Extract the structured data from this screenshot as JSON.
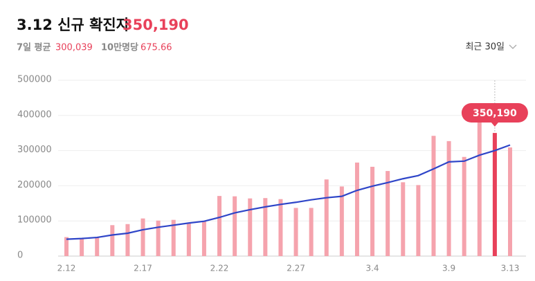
{
  "header": {
    "title": "3.12 신규 확진자",
    "value": "350,190",
    "avg_label": "7일 평균",
    "avg_value": "300,039",
    "per_label": "10만명당",
    "per_value": "675.66",
    "range": "최근 30일"
  },
  "chart_data": {
    "type": "bar",
    "categories": [
      "2.12",
      null,
      null,
      null,
      null,
      "2.17",
      null,
      null,
      null,
      null,
      "2.22",
      null,
      null,
      null,
      null,
      "2.27",
      null,
      null,
      null,
      null,
      "3.4",
      null,
      null,
      null,
      null,
      "3.9",
      null,
      null,
      null,
      "3.13"
    ],
    "series": [
      {
        "type": "bar",
        "color": "#f5a3ad",
        "highlight_color": "#e8415a",
        "values": [
          54000,
          51000,
          54000,
          88000,
          91000,
          107000,
          101000,
          103000,
          95000,
          99000,
          171000,
          170000,
          164000,
          165000,
          162000,
          137000,
          137000,
          218000,
          198000,
          266000,
          254000,
          242000,
          210000,
          202000,
          342000,
          327000,
          282000,
          383000,
          350190,
          309000
        ],
        "value_labels": [
          null,
          null,
          null,
          null,
          null,
          null,
          null,
          null,
          null,
          null,
          null,
          null,
          null,
          null,
          null,
          null,
          null,
          null,
          null,
          null,
          null,
          null,
          null,
          null,
          null,
          null,
          null,
          null,
          "350,190",
          null
        ]
      },
      {
        "type": "line",
        "color": "#2e45c8",
        "values": [
          48000,
          50000,
          53000,
          60000,
          65000,
          75000,
          82000,
          88000,
          94000,
          99000,
          110000,
          123000,
          132000,
          140000,
          147000,
          153000,
          160000,
          166000,
          170000,
          187000,
          199000,
          209000,
          220000,
          229000,
          248000,
          268000,
          270000,
          287000,
          300039,
          316000
        ]
      }
    ],
    "ylim": [
      0,
      500000
    ],
    "yticks": [
      0,
      100000,
      200000,
      300000,
      400000,
      500000
    ],
    "grid": true
  }
}
